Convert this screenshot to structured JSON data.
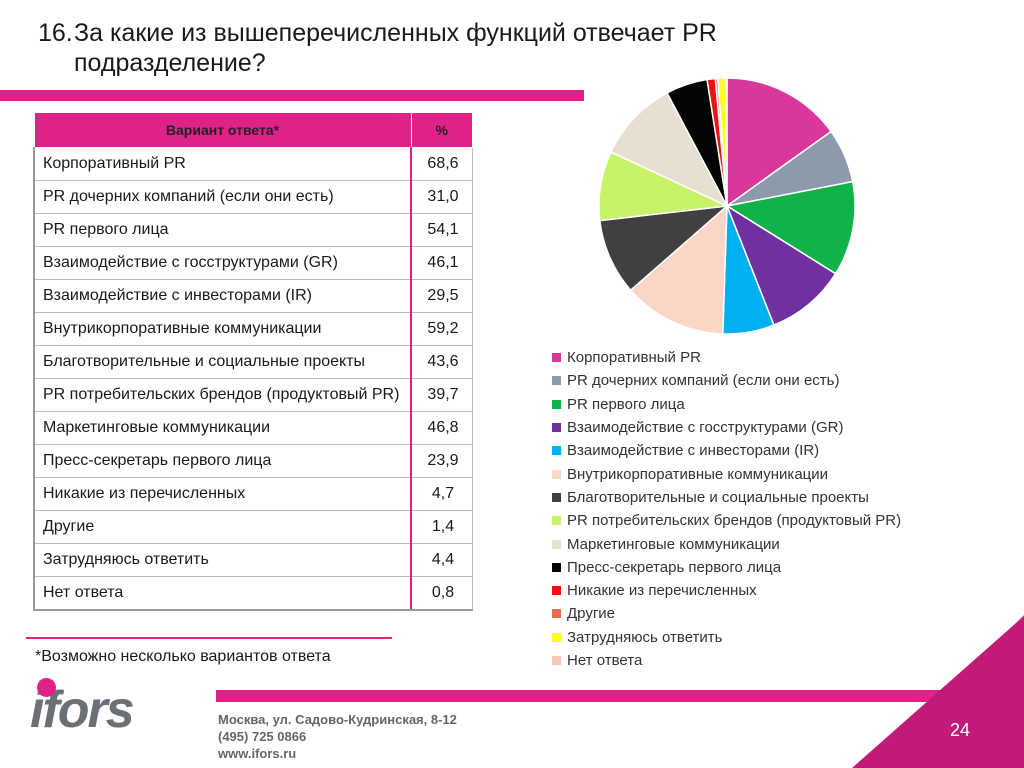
{
  "title": {
    "number": "16.",
    "text": "За какие из вышеперечисленных функций отвечает PR подразделение?"
  },
  "table": {
    "headers": [
      "Вариант ответа*",
      "%"
    ],
    "rows": [
      {
        "label": "Корпоративный PR",
        "value": "68,6"
      },
      {
        "label": "PR  дочерних компаний (если они есть)",
        "value": "31,0"
      },
      {
        "label": "PR  первого лица",
        "value": "54,1"
      },
      {
        "label": "Взаимодействие с госструктурами (GR)",
        "value": "46,1"
      },
      {
        "label": "Взаимодействие с инвесторами (IR)",
        "value": "29,5"
      },
      {
        "label": "Внутрикорпоративные коммуникации",
        "value": "59,2"
      },
      {
        "label": "Благотворительные и социальные проекты",
        "value": "43,6"
      },
      {
        "label": "PR потребительских брендов (продуктовый PR)",
        "value": "39,7"
      },
      {
        "label": "Маркетинговые коммуникации",
        "value": "46,8"
      },
      {
        "label": "Пресс-секретарь первого лица",
        "value": "23,9"
      },
      {
        "label": "Никакие из перечисленных",
        "value": "4,7"
      },
      {
        "label": "Другие",
        "value": "1,4"
      },
      {
        "label": "Затрудняюсь ответить",
        "value": "4,4"
      },
      {
        "label": "Нет ответа",
        "value": "0,8"
      }
    ]
  },
  "footnote": "*Возможно несколько вариантов ответа",
  "footer": {
    "address": "Москва, ул. Садово-Кудринская, 8-12",
    "phone": "(495) 725 0866",
    "website": "www.ifors.ru",
    "page_number": "24",
    "logo": "ifors"
  },
  "chart_data": {
    "type": "pie",
    "legend_position": "bottom",
    "labels": [
      "Корпоративный PR",
      "PR  дочерних компаний (если они есть)",
      "PR  первого лица",
      "Взаимодействие с госструктурами (GR)",
      "Взаимодействие с инвесторами (IR)",
      "Внутрикорпоративные коммуникации",
      "Благотворительные и социальные проекты",
      "PR потребительских брендов (продуктовый PR)",
      "Маркетинговые коммуникации",
      "Пресс-секретарь первого лица",
      "Никакие из перечисленных",
      "Другие",
      "Затрудняюсь ответить",
      "Нет ответа"
    ],
    "values": [
      68.6,
      31.0,
      54.1,
      46.1,
      29.5,
      59.2,
      43.6,
      39.7,
      46.8,
      23.9,
      4.7,
      1.4,
      4.4,
      0.8
    ],
    "colors": [
      "#d9379b",
      "#8d9aab",
      "#12b24b",
      "#7030a0",
      "#00b0f0",
      "#fbd5c5",
      "#404040",
      "#c8f26a",
      "#e7dfd0",
      "#050505",
      "#ee1111",
      "#e46c4f",
      "#ffff22",
      "#f8c6b6"
    ]
  }
}
